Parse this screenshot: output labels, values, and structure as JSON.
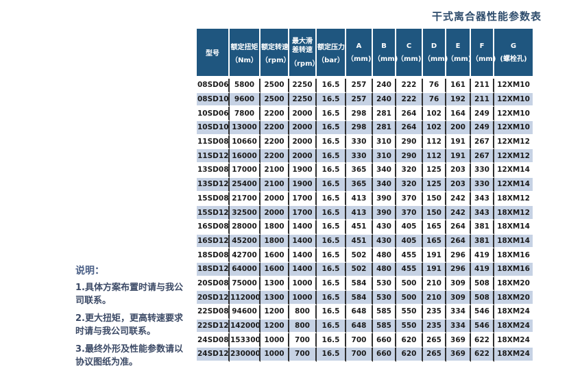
{
  "page": {
    "title": "干式离合器性能参数表"
  },
  "notes": {
    "heading": "说明：",
    "items": [
      "1.具体方案布置时请与我公司联系。",
      "2.更大扭矩，更高转速要求时请与我公司联系。",
      "3.最终外形及性能参数请以协议图纸为准。"
    ]
  },
  "table": {
    "columns": [
      {
        "key": "model",
        "line1": "型号",
        "line2": ""
      },
      {
        "key": "rated-torque",
        "line1": "额定扭矩",
        "line2": "（Nm）"
      },
      {
        "key": "rated-speed",
        "line1": "额定转速",
        "line2": "（rpm）"
      },
      {
        "key": "max-slip-speed",
        "line1": "最大滑差转速",
        "line2": "（rpm）"
      },
      {
        "key": "rated-pressure",
        "line1": "额定压力",
        "line2": "（bar）"
      },
      {
        "key": "dim-a",
        "line1": "A",
        "line2": "（mm)"
      },
      {
        "key": "dim-b",
        "line1": "B",
        "line2": "（mm)"
      },
      {
        "key": "dim-c",
        "line1": "C",
        "line2": "（mm)"
      },
      {
        "key": "dim-d",
        "line1": "D",
        "line2": "（mm)"
      },
      {
        "key": "dim-e",
        "line1": "E",
        "line2": "（mm)"
      },
      {
        "key": "dim-f",
        "line1": "F",
        "line2": "（mm)"
      },
      {
        "key": "dim-g",
        "line1": "G",
        "line2": "(螺栓孔)"
      }
    ],
    "rows": [
      [
        "08SD06",
        "5800",
        "2500",
        "2250",
        "16.5",
        "257",
        "240",
        "222",
        "76",
        "161",
        "211",
        "12XM10"
      ],
      [
        "08SD10",
        "9600",
        "2500",
        "2250",
        "16.5",
        "257",
        "240",
        "222",
        "76",
        "192",
        "211",
        "12XM10"
      ],
      [
        "10SD06",
        "7800",
        "2200",
        "2000",
        "16.5",
        "298",
        "281",
        "264",
        "102",
        "164",
        "249",
        "12XM10"
      ],
      [
        "10SD10",
        "13000",
        "2200",
        "2000",
        "16.5",
        "298",
        "281",
        "264",
        "102",
        "200",
        "249",
        "12XM10"
      ],
      [
        "11SD08",
        "10660",
        "2200",
        "2000",
        "16.5",
        "330",
        "310",
        "290",
        "112",
        "191",
        "267",
        "12XM12"
      ],
      [
        "11SD12",
        "16000",
        "2200",
        "2000",
        "16.5",
        "330",
        "310",
        "290",
        "112",
        "191",
        "267",
        "12XM12"
      ],
      [
        "13SD08",
        "17000",
        "2100",
        "1900",
        "16.5",
        "365",
        "340",
        "320",
        "125",
        "203",
        "330",
        "12XM14"
      ],
      [
        "13SD12",
        "25400",
        "2100",
        "1900",
        "16.5",
        "365",
        "340",
        "320",
        "125",
        "203",
        "330",
        "12XM14"
      ],
      [
        "15SD08",
        "21700",
        "2000",
        "1700",
        "16.5",
        "413",
        "390",
        "370",
        "150",
        "242",
        "343",
        "18XM12"
      ],
      [
        "15SD12",
        "32500",
        "2000",
        "1700",
        "16.5",
        "413",
        "390",
        "370",
        "150",
        "242",
        "343",
        "18XM12"
      ],
      [
        "16SD08",
        "28000",
        "1800",
        "1400",
        "16.5",
        "451",
        "430",
        "405",
        "165",
        "264",
        "381",
        "18XM14"
      ],
      [
        "16SD12",
        "45200",
        "1800",
        "1400",
        "16.5",
        "451",
        "430",
        "405",
        "165",
        "264",
        "381",
        "18XM14"
      ],
      [
        "18SD08",
        "42700",
        "1600",
        "1400",
        "16.5",
        "502",
        "480",
        "455",
        "191",
        "296",
        "419",
        "18XM16"
      ],
      [
        "18SD12",
        "64000",
        "1600",
        "1400",
        "16.5",
        "502",
        "480",
        "455",
        "191",
        "296",
        "419",
        "18XM16"
      ],
      [
        "20SD08",
        "75000",
        "1300",
        "1000",
        "16.5",
        "584",
        "530",
        "500",
        "210",
        "309",
        "508",
        "18XM20"
      ],
      [
        "20SD12",
        "112000",
        "1300",
        "1000",
        "16.5",
        "584",
        "530",
        "500",
        "210",
        "309",
        "508",
        "18XM20"
      ],
      [
        "22SD08",
        "94600",
        "1200",
        "800",
        "16.5",
        "648",
        "585",
        "550",
        "235",
        "334",
        "546",
        "18XM24"
      ],
      [
        "22SD12",
        "142000",
        "1200",
        "800",
        "16.5",
        "648",
        "585",
        "550",
        "235",
        "334",
        "546",
        "18XM24"
      ],
      [
        "24SD08",
        "153300",
        "1000",
        "700",
        "16.5",
        "700",
        "660",
        "620",
        "265",
        "369",
        "622",
        "18XM24"
      ],
      [
        "24SD12",
        "230000",
        "1000",
        "700",
        "16.5",
        "700",
        "660",
        "620",
        "265",
        "369",
        "622",
        "18XM24"
      ]
    ]
  },
  "colors": {
    "header_bg": "#1f567f",
    "row_alt_bg": "#c6d2e4",
    "column_divider": "#2d2d2d",
    "title_text": "#2e4c6c",
    "notes_text": "#3c4a66"
  }
}
